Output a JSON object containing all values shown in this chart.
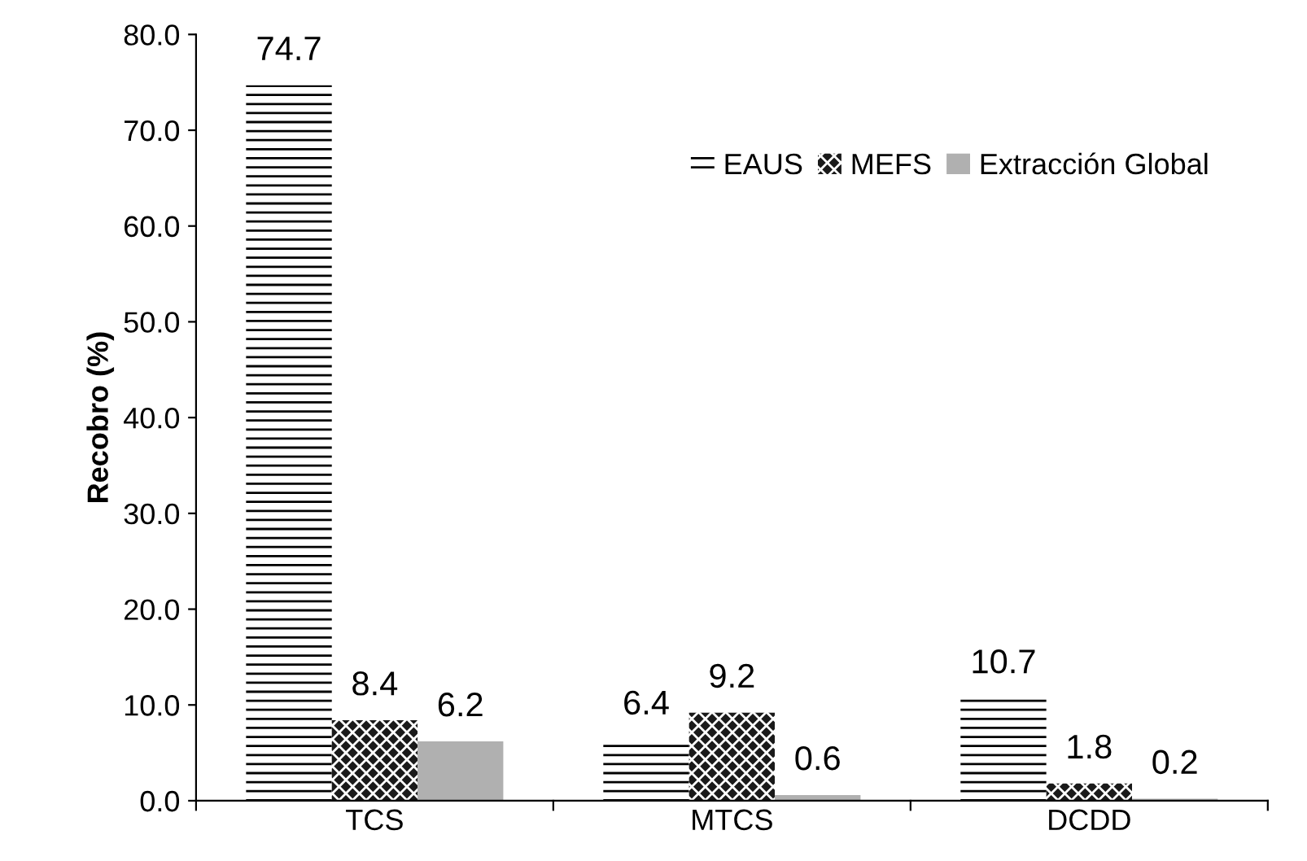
{
  "chart_data": {
    "type": "bar",
    "ylabel": "Recobro (%)",
    "categories": [
      "TCS",
      "MTCS",
      "DCDD"
    ],
    "series": [
      {
        "name": "EAUS",
        "color": "#000000",
        "values": [
          74.7,
          6.4,
          10.7
        ]
      },
      {
        "name": "MEFS",
        "color": "#1a1a1a",
        "values": [
          8.4,
          9.2,
          1.8
        ]
      },
      {
        "name": "Extracción Global",
        "color": "#b0b0b0",
        "values": [
          6.2,
          0.6,
          0.2
        ]
      }
    ],
    "ylim": [
      0,
      80
    ],
    "yticks": [
      {
        "value": 0,
        "label": "0.0"
      },
      {
        "value": 10,
        "label": "10.0"
      },
      {
        "value": 20,
        "label": "20.0"
      },
      {
        "value": 30,
        "label": "30.0"
      },
      {
        "value": 40,
        "label": "40.0"
      },
      {
        "value": 50,
        "label": "50.0"
      },
      {
        "value": 60,
        "label": "60.0"
      },
      {
        "value": 70,
        "label": "70.0"
      },
      {
        "value": 80,
        "label": "80.0"
      }
    ],
    "grid": false,
    "legend": "top right",
    "data_labels": true
  }
}
